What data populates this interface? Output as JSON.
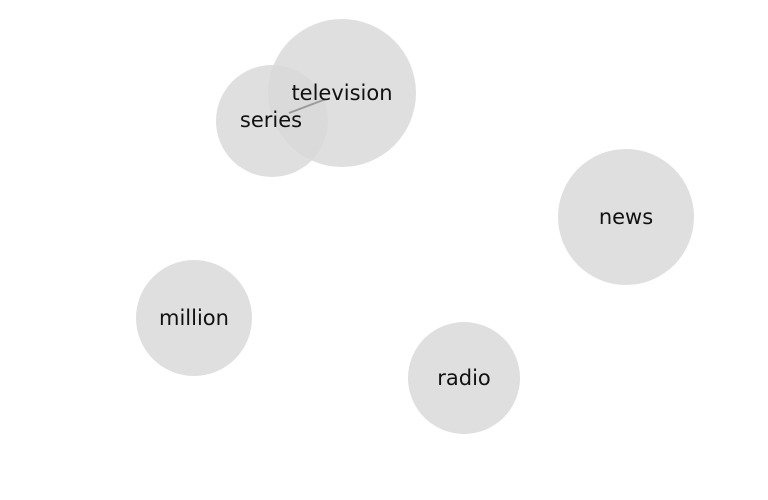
{
  "diagram": {
    "type": "bubble-graph",
    "bubble_color": "#d9d9d9",
    "edge_color": "#9a9a9a",
    "label_color": "#111111",
    "nodes": [
      {
        "id": "television",
        "label": "television"
      },
      {
        "id": "series",
        "label": "series"
      },
      {
        "id": "news",
        "label": "news"
      },
      {
        "id": "million",
        "label": "million"
      },
      {
        "id": "radio",
        "label": "radio"
      }
    ],
    "edges": [
      {
        "from": "series",
        "to": "television"
      }
    ]
  }
}
